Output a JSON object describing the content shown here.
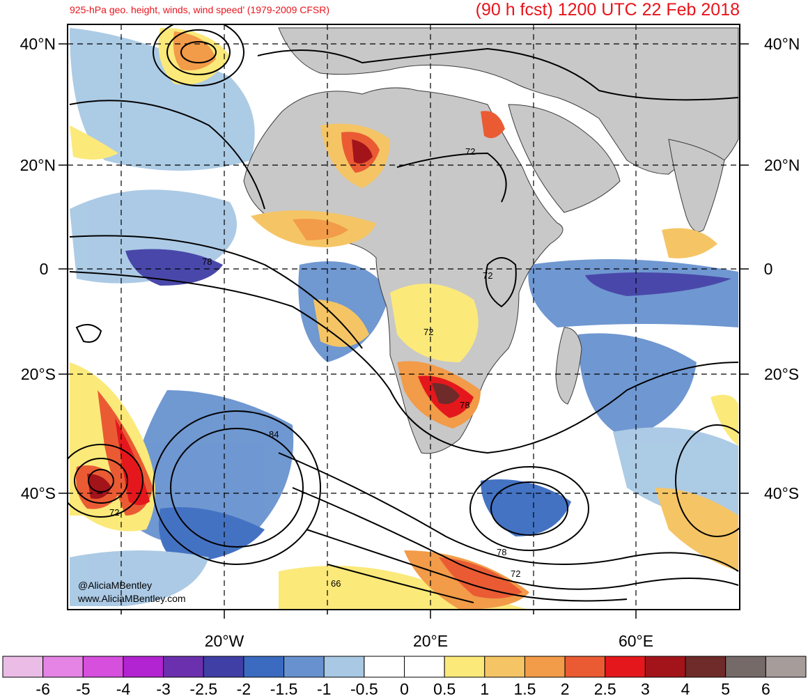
{
  "title_left": "925-hPa geo. height, winds, wind speed’ (1979-2009 CFSR)",
  "title_right": "(90 h fcst) 1200 UTC 22 Feb 2018",
  "lat_labels": [
    "40°N",
    "20°N",
    "0",
    "20°S",
    "40°S"
  ],
  "lon_labels": [
    "20°W",
    "20°E",
    "60°E"
  ],
  "contour_labels": [
    "72",
    "78",
    "72",
    "72",
    "78",
    "84",
    "72",
    "78",
    "72",
    "66"
  ],
  "credit_lines": [
    "@AliciaMBentley",
    "www.AliciaMBentley.com"
  ],
  "colorbar": {
    "colors": [
      "#ebbde6",
      "#e584e5",
      "#d64fdd",
      "#b223d2",
      "#6b30ad",
      "#403fa6",
      "#3a6bc0",
      "#6892cf",
      "#a8c8e4",
      "#ffffff",
      "#ffffff",
      "#fbe97a",
      "#f5c565",
      "#f29b48",
      "#ea5b34",
      "#e4181c",
      "#a3141a",
      "#6f2a2a",
      "#756a68",
      "#a69c9a"
    ],
    "labels": [
      "-6",
      "-5",
      "-4",
      "-3",
      "-2.5",
      "-2",
      "-1.5",
      "-1",
      "-0.5",
      "0",
      "0.5",
      "1",
      "1.5",
      "2",
      "2.5",
      "3",
      "4",
      "5",
      "6"
    ]
  },
  "colors": {
    "title": "#e8141c",
    "land": "#c8c8c8",
    "ocean": "#ffffff"
  }
}
